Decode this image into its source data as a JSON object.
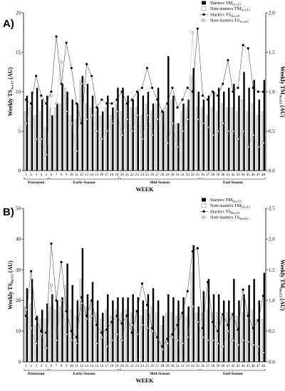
{
  "chart_data": [
    {
      "type": "bar",
      "panel_label": "A)",
      "title": "",
      "xlabel": "WEEK",
      "ylabel_left": {
        "main": "Weekly TS",
        "sub": "AccZ3",
        "unit": " (AU)"
      },
      "ylabel_right": {
        "main": "Weekly TM",
        "sub": "AccZ3",
        "unit": " (AU)"
      },
      "ylim_left": [
        0,
        20
      ],
      "yticks_left": [
        "0",
        "5",
        "10",
        "15",
        "20"
      ],
      "ylim_right": [
        0,
        2.0
      ],
      "yticks_right": [
        "0.0",
        "0.5",
        "1.0",
        "1.5",
        "2.0"
      ],
      "categories": [
        "1",
        "2",
        "3",
        "4",
        "5",
        "6",
        "7",
        "8",
        "9",
        "10",
        "11",
        "12",
        "13",
        "14",
        "15",
        "16",
        "17",
        "18",
        "19",
        "20",
        "21",
        "22",
        "23",
        "24",
        "25",
        "26",
        "27",
        "28",
        "29",
        "30",
        "31",
        "32",
        "33",
        "34",
        "35",
        "36",
        "37",
        "38",
        "39",
        "40",
        "41",
        "42",
        "43",
        "44",
        "45",
        "46",
        "47",
        "48"
      ],
      "phases": [
        {
          "label": "Preseason",
          "start": 1,
          "end": 5
        },
        {
          "label": "Early-Season",
          "start": 6,
          "end": 19
        },
        {
          "label": "Mid-Season",
          "start": 20,
          "end": 35
        },
        {
          "label": "End-Season",
          "start": 36,
          "end": 48
        }
      ],
      "legend_placement": "top-right",
      "series": [
        {
          "name": {
            "main": "Starters TM",
            "sub": "AccZ3"
          },
          "kind": "bar",
          "style": "black",
          "axis": "right",
          "values": [
            0.95,
            1.0,
            1.05,
            0.9,
            0.95,
            0.7,
            0.85,
            1.1,
            1.0,
            0.9,
            0.85,
            1.2,
            1.1,
            0.95,
            0.8,
            0.75,
            0.95,
            0.8,
            1.05,
            1.05,
            0.95,
            0.9,
            1.0,
            0.95,
            1.0,
            0.85,
            1.05,
            0.75,
            1.45,
            0.95,
            0.6,
            0.85,
            0.9,
            1.3,
            1.0,
            0.9,
            0.95,
            1.0,
            1.05,
            1.0,
            1.05,
            1.1,
            0.95,
            1.25,
            1.05,
            1.15,
            0.9,
            1.15
          ]
        },
        {
          "name": {
            "main": "Non-starters TM",
            "sub": "AccZ3"
          },
          "kind": "bar",
          "style": "light",
          "axis": "right",
          "values": [
            0.75,
            0.8,
            0.7,
            0.75,
            0.55,
            0.8,
            0.8,
            0.85,
            1.05,
            0.7,
            0.65,
            1.15,
            0.85,
            0.8,
            0.75,
            0.7,
            0.8,
            0.7,
            0.85,
            0.75,
            0.85,
            0.8,
            0.8,
            0.7,
            0.85,
            0.75,
            0.85,
            0.75,
            0.8,
            0.9,
            0.6,
            0.75,
            0.8,
            1.2,
            0.8,
            0.8,
            0.7,
            0.8,
            0.75,
            0.85,
            0.8,
            0.8,
            0.75,
            0.9,
            0.75,
            0.85,
            0.7,
            0.75
          ]
        },
        {
          "name": {
            "main": "Starters TS",
            "sub": "AccZ3"
          },
          "kind": "line",
          "style": "filled-point",
          "axis": "left",
          "values": [
            9.0,
            8.5,
            12.0,
            9.5,
            8.5,
            10.0,
            17.0,
            11.0,
            16.2,
            13.0,
            8.5,
            6.0,
            13.5,
            12.0,
            8.0,
            9.0,
            8.5,
            8.5,
            9.0,
            10.0,
            8.5,
            9.0,
            10.0,
            10.5,
            13.0,
            10.5,
            9.0,
            7.5,
            8.5,
            10.5,
            8.0,
            9.0,
            10.5,
            10.0,
            18.0,
            9.5,
            9.0,
            10.0,
            9.5,
            11.0,
            14.0,
            10.0,
            10.5,
            15.9,
            15.5,
            10.5,
            10.0,
            10.0
          ]
        },
        {
          "name": {
            "main": "Non-starters TS",
            "sub": "AccZ3"
          },
          "kind": "line",
          "style": "open-point",
          "axis": "left",
          "values": [
            6.0,
            8.5,
            4.0,
            4.0,
            2.0,
            9.5,
            8.5,
            13.8,
            7.5,
            6.0,
            2.5,
            11.0,
            6.5,
            7.0,
            5.0,
            4.0,
            5.0,
            6.0,
            7.5,
            4.5,
            6.5,
            5.0,
            7.0,
            4.0,
            7.0,
            4.5,
            6.5,
            7.5,
            3.5,
            6.0,
            3.0,
            5.0,
            6.5,
            17.5,
            6.5,
            6.0,
            5.5,
            4.5,
            5.0,
            6.0,
            5.0,
            5.0,
            4.0,
            5.0,
            3.0,
            4.5,
            3.0,
            3.5
          ]
        }
      ]
    },
    {
      "type": "bar",
      "panel_label": "B)",
      "title": "",
      "xlabel": "WEEK",
      "ylabel_left": {
        "main": "Weekly TS",
        "sub": "DecZ3",
        "unit": " (AU)"
      },
      "ylabel_right": {
        "main": "Weekly TM",
        "sub": "DecZ3",
        "unit": " (AU)"
      },
      "ylim_left": [
        0,
        50
      ],
      "yticks_left": [
        "0",
        "10",
        "20",
        "30",
        "40",
        "50"
      ],
      "ylim_right": [
        0,
        2.5
      ],
      "yticks_right": [
        "0.0",
        "0.5",
        "1.0",
        "1.5",
        "2.0",
        "2.5"
      ],
      "categories": [
        "1",
        "2",
        "3",
        "4",
        "5",
        "6",
        "7",
        "8",
        "9",
        "10",
        "11",
        "12",
        "13",
        "14",
        "15",
        "16",
        "17",
        "18",
        "19",
        "20",
        "21",
        "22",
        "23",
        "24",
        "25",
        "26",
        "27",
        "28",
        "29",
        "30",
        "31",
        "32",
        "33",
        "34",
        "35",
        "36",
        "37",
        "38",
        "39",
        "40",
        "41",
        "42",
        "43",
        "44",
        "45",
        "46",
        "47",
        "48"
      ],
      "phases": [
        {
          "label": "Preseason",
          "start": 1,
          "end": 5
        },
        {
          "label": "Early-Season",
          "start": 6,
          "end": 19
        },
        {
          "label": "Mid-Season",
          "start": 20,
          "end": 35
        },
        {
          "label": "End-Season",
          "start": 36,
          "end": 48
        }
      ],
      "legend_placement": "top-right",
      "series": [
        {
          "name": {
            "main": "Starters TM",
            "sub": "DecZ3"
          },
          "kind": "bar",
          "style": "black",
          "axis": "right",
          "values": [
            1.2,
            1.35,
            0.75,
            0.85,
            0.95,
            1.1,
            1.0,
            1.05,
            1.6,
            1.25,
            1.0,
            1.85,
            1.1,
            1.3,
            1.0,
            0.8,
            1.1,
            1.0,
            1.05,
            1.05,
            1.05,
            1.1,
            1.05,
            1.0,
            1.1,
            1.2,
            1.0,
            0.75,
            1.1,
            1.05,
            1.0,
            1.05,
            0.9,
            1.9,
            0.9,
            1.15,
            1.35,
            1.1,
            1.1,
            1.0,
            1.0,
            1.35,
            1.0,
            1.1,
            1.25,
            1.35,
            1.0,
            1.45
          ]
        },
        {
          "name": {
            "main": "Non-starters TM",
            "sub": "DecZ3"
          },
          "kind": "bar",
          "style": "light",
          "axis": "right",
          "values": [
            0.9,
            0.95,
            0.6,
            0.7,
            0.7,
            0.9,
            0.85,
            0.9,
            1.25,
            0.85,
            0.75,
            1.35,
            0.9,
            1.0,
            0.8,
            0.7,
            0.85,
            0.75,
            0.85,
            0.8,
            0.85,
            0.8,
            0.85,
            0.75,
            0.85,
            0.9,
            0.8,
            0.6,
            0.8,
            0.8,
            0.75,
            0.8,
            0.75,
            1.45,
            0.8,
            0.8,
            0.85,
            0.8,
            0.8,
            0.75,
            0.8,
            0.8,
            0.75,
            0.8,
            0.8,
            0.85,
            0.7,
            0.7
          ]
        },
        {
          "name": {
            "main": "Starters TS",
            "sub": "DecZ3"
          },
          "kind": "line",
          "style": "filled-point",
          "axis": "left",
          "values": [
            15.0,
            29.5,
            14.0,
            10.0,
            9.5,
            38.5,
            20.0,
            32.5,
            16.5,
            10.0,
            8.0,
            21.0,
            15.0,
            20.0,
            12.0,
            9.5,
            10.5,
            13.0,
            15.0,
            12.5,
            15.0,
            9.5,
            16.5,
            25.5,
            18.5,
            11.0,
            8.0,
            5.0,
            7.5,
            9.0,
            12.0,
            16.0,
            23.0,
            36.0,
            37.0,
            11.0,
            26.0,
            13.0,
            10.0,
            15.5,
            12.0,
            15.5,
            10.5,
            23.5,
            15.0,
            11.0,
            13.5,
            21.5
          ]
        },
        {
          "name": {
            "main": "Non-starters TS",
            "sub": "DecZ3"
          },
          "kind": "line",
          "style": "open-point",
          "axis": "left",
          "values": [
            17.0,
            11.0,
            6.0,
            9.0,
            4.5,
            25.0,
            7.0,
            20.0,
            9.0,
            7.0,
            6.0,
            19.0,
            14.0,
            15.0,
            6.0,
            8.0,
            5.0,
            7.0,
            9.0,
            7.0,
            15.0,
            12.0,
            9.0,
            12.0,
            11.0,
            10.0,
            8.0,
            4.0,
            6.0,
            8.0,
            7.0,
            6.0,
            8.0,
            18.0,
            13.0,
            8.0,
            7.0,
            7.0,
            6.0,
            5.0,
            10.0,
            7.0,
            5.5,
            7.0,
            6.5,
            5.5,
            5.0,
            3.0
          ]
        }
      ]
    }
  ]
}
